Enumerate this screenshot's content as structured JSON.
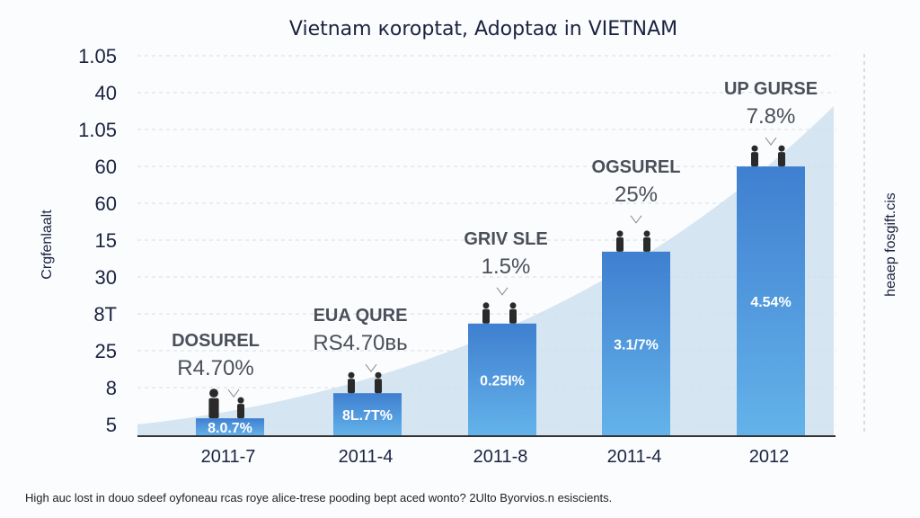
{
  "chart_data": {
    "type": "bar",
    "title": "Vietnam кoroptat, Adoptaα in VIETNAM",
    "ylabel": "Crgfenlaalt",
    "right_label": "heaep fosgift.cis",
    "y_tick_labels": [
      "1.05",
      "40",
      "1.05",
      "60",
      "60",
      "15",
      "30",
      "8T",
      "25",
      "8",
      "5"
    ],
    "categories": [
      "2011-7",
      "2011-4",
      "2011-8",
      "2011-4",
      "2012"
    ],
    "values": [
      4.7,
      11.3,
      29.6,
      48.5,
      70.9
    ],
    "ylim": [
      0,
      100
    ],
    "bar_labels": [
      "8.0.7%",
      "8L.7T%",
      "0.25I%",
      "3.1/7%",
      "4.54%"
    ],
    "annotations": [
      {
        "title": "DOSUREL",
        "value": "R4.70%"
      },
      {
        "title": "EUA QURE",
        "value": "RS4.70вь"
      },
      {
        "title": "GRIV SLE",
        "value": "1.5%"
      },
      {
        "title": "OGSUREL",
        "value": "25%"
      },
      {
        "title": "UP GURSE",
        "value": "7.8%"
      }
    ],
    "trend_area": true,
    "grid": true,
    "colors": {
      "bar_top": "#3f7fd0",
      "bar_bottom": "#64b3ea",
      "area": "#cfe0f0",
      "text": "#1a2340"
    }
  },
  "footnote": "High auc lost in douo sdeef oyfoneau rcas roye alice-trese pooding bept aced wonto? 2Ulto Byorvios.n esiscients."
}
